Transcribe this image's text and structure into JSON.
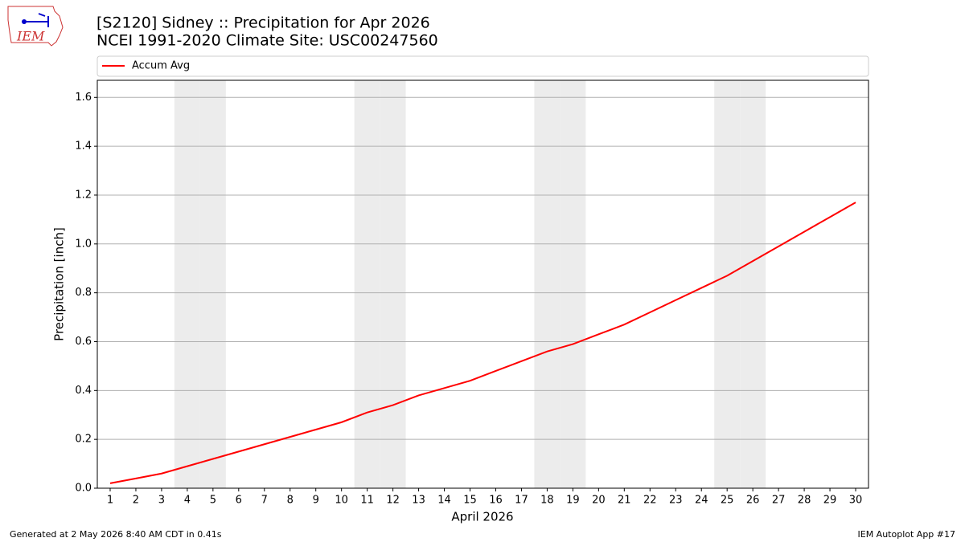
{
  "logo_text": "IEM",
  "chart_data": {
    "type": "line",
    "title": "[S2120] Sidney :: Precipitation for Apr 2026",
    "subtitle": "NCEI 1991-2020 Climate Site: USC00247560",
    "x_label": "April 2026",
    "y_label": "Precipitation [inch]",
    "footer_left": "Generated at 2 May 2026 8:40 AM CDT in 0.41s",
    "footer_right": "IEM Autoplot App #17",
    "x": [
      1,
      2,
      3,
      4,
      5,
      6,
      7,
      8,
      9,
      10,
      11,
      12,
      13,
      14,
      15,
      16,
      17,
      18,
      19,
      20,
      21,
      22,
      23,
      24,
      25,
      26,
      27,
      28,
      29,
      30
    ],
    "series": [
      {
        "name": "Accum Avg",
        "color": "#ff0000",
        "values": [
          0.02,
          0.04,
          0.06,
          0.09,
          0.12,
          0.15,
          0.18,
          0.21,
          0.24,
          0.27,
          0.31,
          0.34,
          0.38,
          0.41,
          0.44,
          0.48,
          0.52,
          0.56,
          0.59,
          0.63,
          0.67,
          0.72,
          0.77,
          0.82,
          0.87,
          0.93,
          0.99,
          1.05,
          1.11,
          1.17
        ]
      }
    ],
    "shaded_days": [
      4,
      5,
      11,
      12,
      18,
      19,
      25,
      26
    ],
    "shade_color": "#ececec",
    "xlim": [
      0.5,
      30.5
    ],
    "xticks": [
      1,
      2,
      3,
      4,
      5,
      6,
      7,
      8,
      9,
      10,
      11,
      12,
      13,
      14,
      15,
      16,
      17,
      18,
      19,
      20,
      21,
      22,
      23,
      24,
      25,
      26,
      27,
      28,
      29,
      30
    ],
    "ylim": [
      0,
      1.67
    ],
    "yticks": [
      {
        "value": 0,
        "label": "0.0"
      },
      0.2,
      0.4,
      0.6,
      0.8,
      {
        "value": 1,
        "label": "1.0"
      },
      1.2,
      1.4,
      1.6
    ],
    "grid": true,
    "legend": "top"
  }
}
